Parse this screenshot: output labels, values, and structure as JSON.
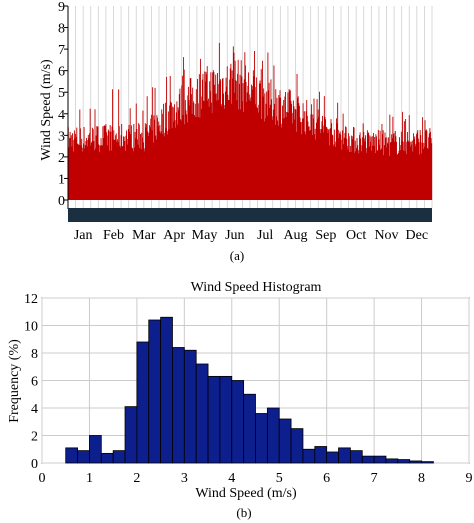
{
  "chart_data": [
    {
      "type": "area",
      "ylabel": "Wind Speed (m/s)",
      "caption": "(a)",
      "ylim": [
        0,
        9
      ],
      "yticks": [
        "0",
        "1",
        "2",
        "3",
        "4",
        "5",
        "6",
        "7",
        "8",
        "9"
      ],
      "months": [
        "Jan",
        "Feb",
        "Mar",
        "Apr",
        "May",
        "Jun",
        "Jul",
        "Aug",
        "Sep",
        "Oct",
        "Nov",
        "Dec"
      ],
      "series": [
        {
          "monthly_peak": [
            4.5,
            5.2,
            4.8,
            6.4,
            7.6,
            8.0,
            6.9,
            6.2,
            5.0,
            4.2,
            4.0,
            4.2
          ],
          "monthly_typical": [
            2.9,
            3.0,
            3.0,
            4.3,
            5.2,
            5.6,
            4.8,
            4.2,
            3.4,
            2.8,
            2.7,
            2.8
          ]
        }
      ],
      "fill_color": "#c00000",
      "timeline_bar_color": "#1a3040"
    },
    {
      "type": "bar",
      "title": "Wind Speed Histogram",
      "xlabel": "Wind Speed (m/s)",
      "ylabel": "Frequency (%)",
      "caption": "(b)",
      "xlim": [
        0,
        9
      ],
      "ylim": [
        0,
        12
      ],
      "xticks": [
        "0",
        "1",
        "2",
        "3",
        "4",
        "5",
        "6",
        "7",
        "8",
        "9"
      ],
      "yticks": [
        "0",
        "2",
        "4",
        "6",
        "8",
        "10",
        "12"
      ],
      "bin_width": 0.25,
      "bin_starts": [
        0.5,
        0.75,
        1.0,
        1.25,
        1.5,
        1.75,
        2.0,
        2.25,
        2.5,
        2.75,
        3.0,
        3.25,
        3.5,
        3.75,
        4.0,
        4.25,
        4.5,
        4.75,
        5.0,
        5.25,
        5.5,
        5.75,
        6.0,
        6.25,
        6.5,
        6.75,
        7.0,
        7.25,
        7.5,
        7.75,
        8.0
      ],
      "values": [
        1.1,
        0.9,
        2.0,
        0.7,
        0.9,
        4.1,
        8.8,
        10.4,
        10.6,
        8.4,
        8.2,
        7.2,
        6.3,
        6.3,
        6.0,
        5.0,
        3.6,
        4.0,
        3.2,
        2.5,
        1.0,
        1.2,
        0.8,
        1.1,
        0.9,
        0.5,
        0.5,
        0.3,
        0.25,
        0.15,
        0.1
      ],
      "bar_color": "#0d1f8c",
      "grid": true
    }
  ]
}
